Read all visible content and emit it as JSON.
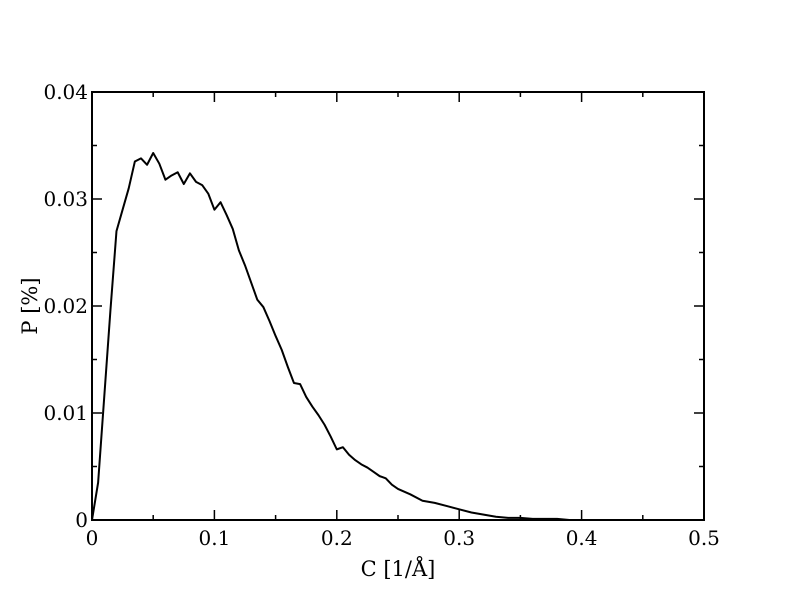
{
  "chart_data": {
    "type": "line",
    "title": "",
    "xlabel": "C [1/Å]",
    "ylabel": "P [%]",
    "xlim": [
      0,
      0.5
    ],
    "ylim": [
      0,
      0.04
    ],
    "grid": false,
    "x_ticks": [
      "0",
      "0.1",
      "0.2",
      "0.3",
      "0.4",
      "0.5"
    ],
    "y_ticks": [
      "0",
      "0.01",
      "0.02",
      "0.03",
      "0.04"
    ],
    "series": [
      {
        "color": "#000000",
        "x": [
          0.0,
          0.005,
          0.01,
          0.015,
          0.02,
          0.025,
          0.03,
          0.035,
          0.04,
          0.045,
          0.05,
          0.055,
          0.06,
          0.065,
          0.07,
          0.075,
          0.08,
          0.085,
          0.09,
          0.095,
          0.1,
          0.105,
          0.11,
          0.115,
          0.12,
          0.125,
          0.13,
          0.135,
          0.14,
          0.145,
          0.15,
          0.155,
          0.16,
          0.165,
          0.17,
          0.175,
          0.18,
          0.185,
          0.19,
          0.195,
          0.2,
          0.205,
          0.21,
          0.215,
          0.22,
          0.225,
          0.23,
          0.235,
          0.24,
          0.245,
          0.25,
          0.26,
          0.27,
          0.28,
          0.29,
          0.3,
          0.31,
          0.32,
          0.33,
          0.34,
          0.35,
          0.36,
          0.37,
          0.38,
          0.39,
          0.4,
          0.41,
          0.42
        ],
        "y": [
          0.0,
          0.0035,
          0.0115,
          0.0195,
          0.027,
          0.029,
          0.031,
          0.0335,
          0.0338,
          0.0332,
          0.0343,
          0.0333,
          0.0318,
          0.0322,
          0.0325,
          0.0314,
          0.0324,
          0.0316,
          0.0313,
          0.0305,
          0.029,
          0.0297,
          0.0285,
          0.0272,
          0.0252,
          0.0238,
          0.0222,
          0.0206,
          0.0199,
          0.0186,
          0.0172,
          0.0159,
          0.0143,
          0.0128,
          0.0127,
          0.0115,
          0.0106,
          0.0098,
          0.0089,
          0.0078,
          0.0066,
          0.0068,
          0.0061,
          0.0056,
          0.0052,
          0.0049,
          0.0045,
          0.0041,
          0.0039,
          0.0033,
          0.0029,
          0.0024,
          0.0018,
          0.0016,
          0.0013,
          0.001,
          0.0007,
          0.0005,
          0.0003,
          0.0002,
          0.0002,
          0.0001,
          0.0001,
          0.0001,
          0.0,
          0.0,
          0.0,
          0.0
        ]
      }
    ]
  }
}
